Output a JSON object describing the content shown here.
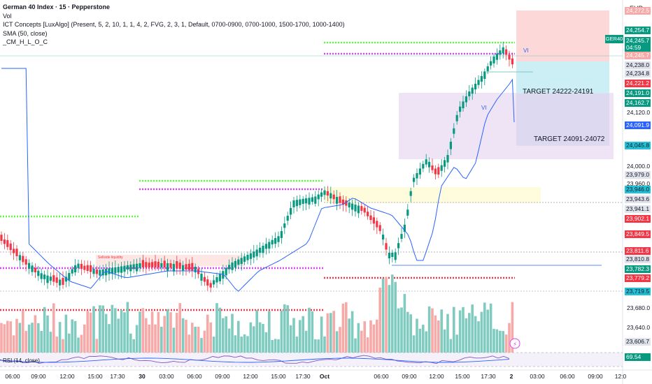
{
  "legend": {
    "title": "German 40 Index · 15 · Pepperstone",
    "lines": [
      "Vol",
      "ICT Concepts [LuxAlgo] (Present, 5, 2, 10, 1, 1, 4, 2, FVG, 2, 3, 1, Default, 0700-0900, 0700-1000, 1500-1700, 1000-1400)",
      "SMA (50, close)",
      "_CM_H_L_O_C"
    ]
  },
  "currency": "EUR",
  "symbol_tag": "GER40",
  "price_axis": [
    {
      "text": "24,272.5",
      "bg": "#f7a9a7",
      "fg": "#ffffff"
    },
    {
      "text": "24,254.7",
      "bg": "#089981",
      "fg": "#ffffff"
    },
    {
      "text": "24,245.7",
      "bg": "#089981",
      "fg": "#ffffff"
    },
    {
      "text": "04:59",
      "bg": "#089981",
      "fg": "#ffffff"
    },
    {
      "text": "24,245.7",
      "bg": "#f7a9a7",
      "fg": "#ffffff"
    },
    {
      "text": "24,238.0",
      "bg": "#e0e3eb",
      "fg": "#131722"
    },
    {
      "text": "24,234.8",
      "bg": "#e0e3eb",
      "fg": "#131722"
    },
    {
      "text": "24,221.2",
      "bg": "#f23645",
      "fg": "#ffffff"
    },
    {
      "text": "24,191.0",
      "bg": "#089981",
      "fg": "#ffffff"
    },
    {
      "text": "24,162.7",
      "bg": "#089981",
      "fg": "#ffffff"
    },
    {
      "text": "24,120.0",
      "bg": "",
      "fg": "#131722"
    },
    {
      "text": "24,091.9",
      "bg": "#2962ff",
      "fg": "#ffffff"
    },
    {
      "text": "24,045.8",
      "bg": "#22c0d6",
      "fg": "#131722"
    },
    {
      "text": "24,000.0",
      "bg": "",
      "fg": "#131722"
    },
    {
      "text": "23,979.0",
      "bg": "#e0e3eb",
      "fg": "#131722"
    },
    {
      "text": "23,960.0",
      "bg": "",
      "fg": "#131722"
    },
    {
      "text": "23,946.0",
      "bg": "#22c0d6",
      "fg": "#131722"
    },
    {
      "text": "23,943.6",
      "bg": "#e0e3eb",
      "fg": "#131722"
    },
    {
      "text": "23,941.1",
      "bg": "#e0e3eb",
      "fg": "#131722"
    },
    {
      "text": "23,902.1",
      "bg": "#f23645",
      "fg": "#ffffff"
    },
    {
      "text": "23,849.5",
      "bg": "#f23645",
      "fg": "#ffffff"
    },
    {
      "text": "23,811.6",
      "bg": "#f23645",
      "fg": "#ffffff"
    },
    {
      "text": "23,810.8",
      "bg": "#e0e3eb",
      "fg": "#131722"
    },
    {
      "text": "23,782.3",
      "bg": "#089981",
      "fg": "#ffffff"
    },
    {
      "text": "23,779.2",
      "bg": "#f23645",
      "fg": "#ffffff"
    },
    {
      "text": "23,719.5",
      "bg": "#22c0d6",
      "fg": "#131722"
    },
    {
      "text": "23,680.0",
      "bg": "",
      "fg": "#131722"
    },
    {
      "text": "23,640.0",
      "bg": "",
      "fg": "#131722"
    },
    {
      "text": "23,606.7",
      "bg": "#e0e3eb",
      "fg": "#131722"
    },
    {
      "text": "69.54",
      "bg": "#089981",
      "fg": "#ffffff"
    }
  ],
  "time_axis": [
    "06:00",
    "09:00",
    "12:00",
    "15:00",
    "17:30",
    "30",
    "03:00",
    "06:00",
    "09:00",
    "12:00",
    "15:00",
    "17:30",
    "Oct",
    "06:00",
    "09:00",
    "12:00",
    "15:00",
    "17:30",
    "2",
    "03:00",
    "06:00",
    "09:00",
    "12:0"
  ],
  "targets": [
    "TARGET  24222-24191",
    "TARGET  24091-24072"
  ],
  "labels": {
    "vi_1": "VI",
    "vi_2": "VI",
    "sellside": "Sellside liquidity",
    "rsi": "RSI (14, close)"
  },
  "colors": {
    "bull": "#089981",
    "bear": "#f23645",
    "vol_bull": "#7fcbc0",
    "vol_bear": "#f7a9a7",
    "sma": "#2962ff",
    "magenta": "#e040fb",
    "green_dot": "#5cff3b",
    "red_dot": "#f23645"
  }
}
